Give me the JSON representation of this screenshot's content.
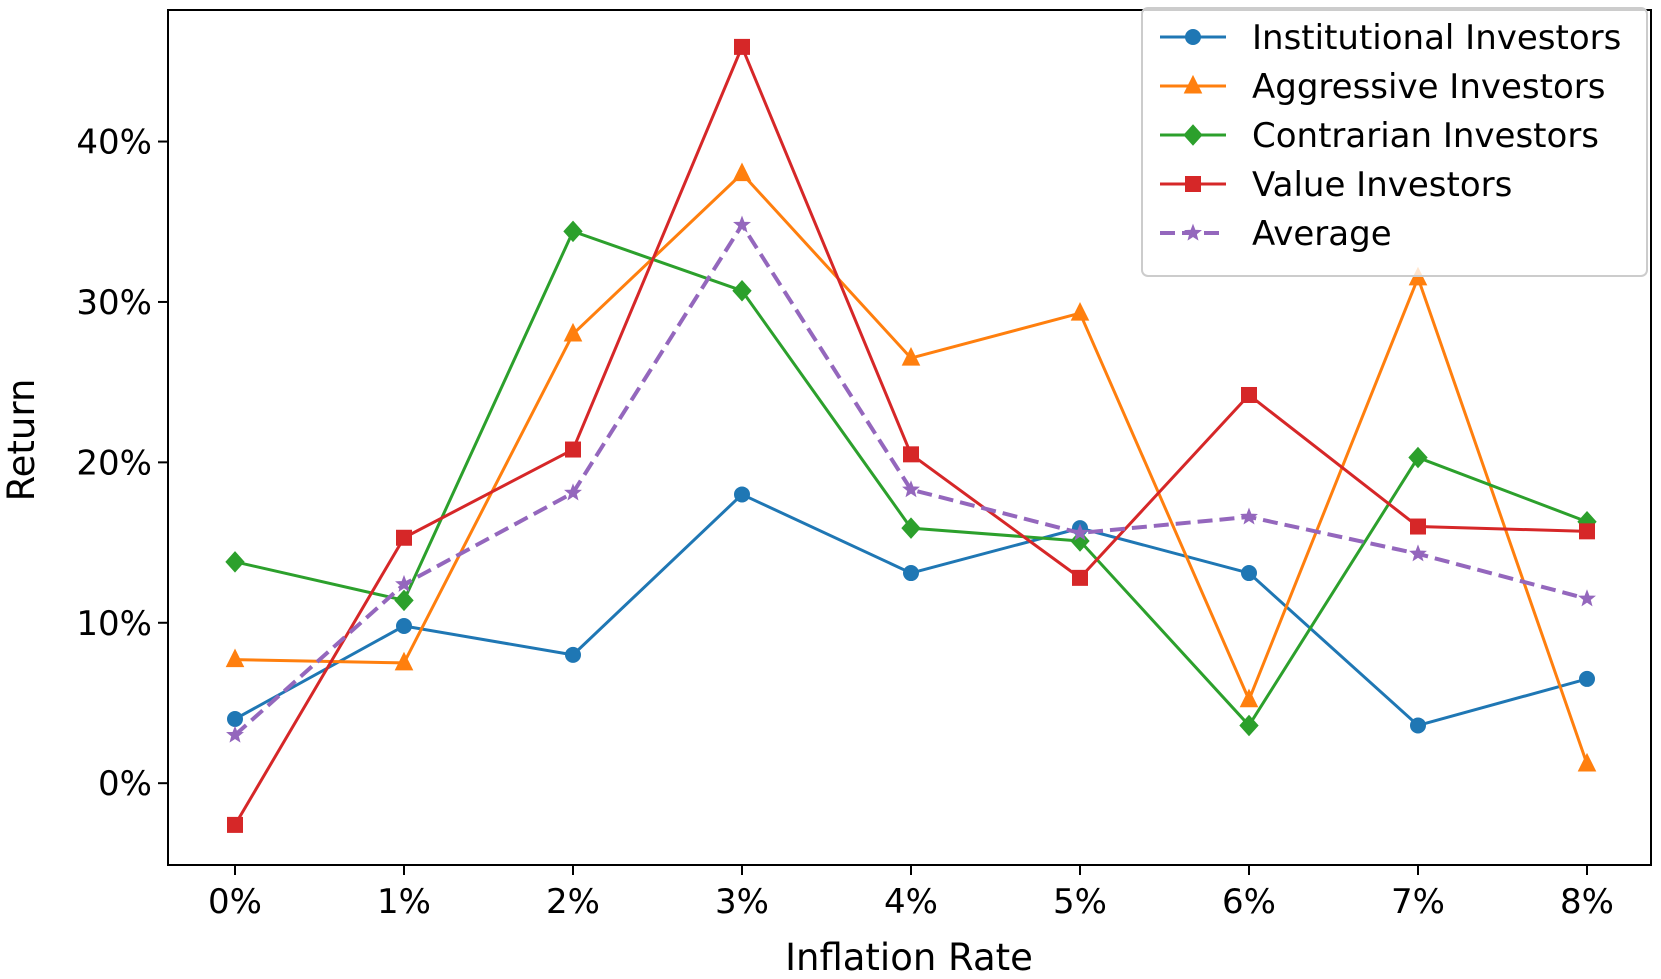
{
  "chart_data": {
    "type": "line",
    "xlabel": "Inflation Rate",
    "ylabel": "Return",
    "categories": [
      "0%",
      "1%",
      "2%",
      "3%",
      "4%",
      "5%",
      "6%",
      "7%",
      "8%"
    ],
    "ylim": [
      -5.1,
      48.2
    ],
    "yticks": [
      0,
      10,
      20,
      30,
      40
    ],
    "ytick_labels": [
      "0%",
      "10%",
      "20%",
      "30%",
      "40%"
    ],
    "grid": false,
    "legend_position": "top-right",
    "series": [
      {
        "name": "Institutional Investors",
        "color": "#1f77b4",
        "marker": "circle",
        "dashed": false,
        "values": [
          4.0,
          9.8,
          8.0,
          18.0,
          13.1,
          15.9,
          13.1,
          3.6,
          6.5
        ]
      },
      {
        "name": "Aggressive Investors",
        "color": "#ff7f0e",
        "marker": "triangle",
        "dashed": false,
        "values": [
          7.7,
          7.5,
          28.0,
          38.0,
          26.5,
          29.3,
          5.2,
          31.5,
          1.2
        ]
      },
      {
        "name": "Contrarian Investors",
        "color": "#2ca02c",
        "marker": "diamond",
        "dashed": false,
        "values": [
          13.8,
          11.4,
          34.4,
          30.7,
          15.9,
          15.1,
          3.6,
          20.3,
          16.3
        ]
      },
      {
        "name": "Value Investors",
        "color": "#d62728",
        "marker": "square",
        "dashed": false,
        "values": [
          -2.6,
          15.3,
          20.8,
          45.9,
          20.5,
          12.8,
          24.2,
          16.0,
          15.7
        ]
      },
      {
        "name": "Average",
        "color": "#9467bd",
        "marker": "star",
        "dashed": true,
        "values": [
          3.0,
          12.4,
          18.1,
          34.8,
          18.3,
          15.6,
          16.6,
          14.3,
          11.5
        ]
      }
    ]
  }
}
